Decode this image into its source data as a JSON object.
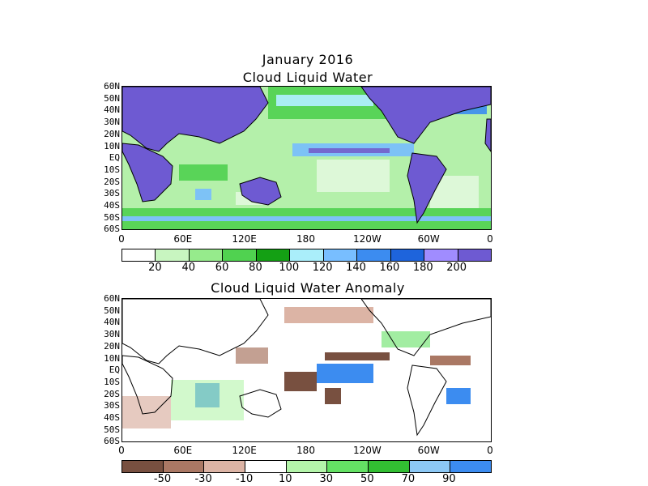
{
  "title_line1": "January 2016",
  "title_line2": "Cloud Liquid Water",
  "title_anomaly": "Cloud Liquid Water Anomaly",
  "lat_labels": [
    "60N",
    "50N",
    "40N",
    "30N",
    "20N",
    "10N",
    "EQ",
    "10S",
    "20S",
    "30S",
    "40S",
    "50S",
    "60S"
  ],
  "lon_labels": [
    "0",
    "60E",
    "120E",
    "180",
    "120W",
    "60W",
    "0"
  ],
  "colorbar_top": {
    "labels": [
      "20",
      "40",
      "60",
      "80",
      "100",
      "120",
      "140",
      "160",
      "180",
      "200"
    ],
    "colors": [
      "#ffffff",
      "#c8f5c0",
      "#96eb8c",
      "#50d250",
      "#14a014",
      "#aaeefa",
      "#78beff",
      "#3c8cf0",
      "#1e64dc",
      "#a08cff",
      "#6e5ad2"
    ]
  },
  "colorbar_bottom": {
    "labels": [
      "-50",
      "-30",
      "-10",
      "10",
      "30",
      "50",
      "70",
      "90"
    ],
    "colors": [
      "#785040",
      "#aa7864",
      "#dcb4a5",
      "#ffffff",
      "#b4f5aa",
      "#64e164",
      "#32be32",
      "#8cc8f5",
      "#3c8cf0"
    ]
  }
}
